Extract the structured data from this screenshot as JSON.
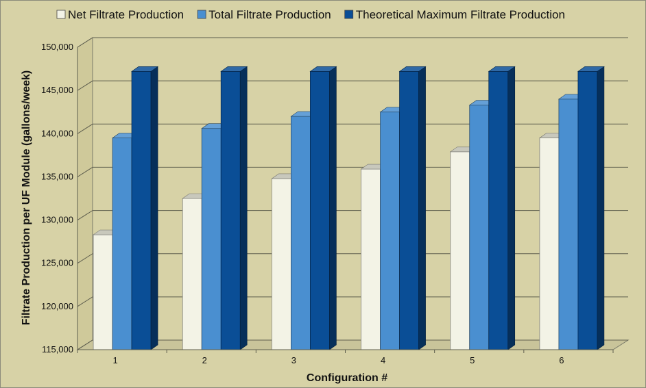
{
  "chart_data": {
    "type": "bar",
    "title": "",
    "xlabel": "Configuration #",
    "ylabel": "Filtrate Production per UF Module (gallons/week)",
    "categories": [
      "1",
      "2",
      "3",
      "4",
      "5",
      "6"
    ],
    "ylim": [
      115000,
      150000
    ],
    "yticks": [
      115000,
      120000,
      125000,
      130000,
      135000,
      140000,
      145000,
      150000
    ],
    "ytick_labels": [
      "115,000",
      "120,000",
      "125,000",
      "130,000",
      "135,000",
      "140,000",
      "145,000",
      "150,000"
    ],
    "grid": true,
    "legend_position": "top",
    "series": [
      {
        "name": "Net Filtrate Production",
        "values": [
          128300,
          132500,
          134800,
          135900,
          137900,
          139500
        ],
        "color": "#f3f3e6"
      },
      {
        "name": "Total Filtrate Production",
        "values": [
          139500,
          140600,
          142000,
          142500,
          143300,
          144000
        ],
        "color": "#4a8fd0"
      },
      {
        "name": "Theoretical Maximum Filtrate Production",
        "values": [
          147200,
          147200,
          147200,
          147200,
          147200,
          147200
        ],
        "color": "#0a4e96"
      }
    ]
  }
}
